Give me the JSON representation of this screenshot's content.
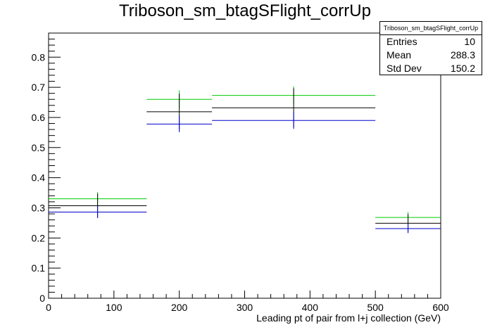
{
  "chart_data": {
    "type": "scatter",
    "title": "Triboson_sm_btagSFlight_corrUp",
    "xlabel": "Leading pt of pair from l+j collection (GeV)",
    "ylabel": "",
    "xlim": [
      0,
      600
    ],
    "ylim": [
      0,
      0.88
    ],
    "x_ticks": [
      0,
      100,
      200,
      300,
      400,
      500,
      600
    ],
    "y_ticks": [
      0,
      0.1,
      0.2,
      0.3,
      0.4,
      0.5,
      0.6,
      0.7,
      0.8
    ],
    "x_tick_labels": [
      "0",
      "100",
      "200",
      "300",
      "400",
      "500",
      "600"
    ],
    "y_tick_labels": [
      "0",
      "0.1",
      "0.2",
      "0.3",
      "0.4",
      "0.5",
      "0.6",
      "0.7",
      "0.8"
    ],
    "grid": false,
    "series": [
      {
        "color": "#00cc00",
        "bins": [
          {
            "x_low": 0,
            "x_high": 150,
            "y": 0.33,
            "err": 0.022
          },
          {
            "x_low": 150,
            "x_high": 250,
            "y": 0.66,
            "err": 0.03
          },
          {
            "x_low": 250,
            "x_high": 500,
            "y": 0.673,
            "err": 0.03
          },
          {
            "x_low": 500,
            "x_high": 600,
            "y": 0.268,
            "err": 0.018
          }
        ]
      },
      {
        "color": "#000000",
        "bins": [
          {
            "x_low": 0,
            "x_high": 150,
            "y": 0.307,
            "err": 0.04
          },
          {
            "x_low": 150,
            "x_high": 250,
            "y": 0.619,
            "err": 0.06
          },
          {
            "x_low": 250,
            "x_high": 500,
            "y": 0.632,
            "err": 0.065
          },
          {
            "x_low": 500,
            "x_high": 600,
            "y": 0.249,
            "err": 0.03
          }
        ]
      },
      {
        "color": "#0000cc",
        "bins": [
          {
            "x_low": 0,
            "x_high": 150,
            "y": 0.286,
            "err": 0.02
          },
          {
            "x_low": 150,
            "x_high": 250,
            "y": 0.578,
            "err": 0.027
          },
          {
            "x_low": 250,
            "x_high": 500,
            "y": 0.59,
            "err": 0.028
          },
          {
            "x_low": 500,
            "x_high": 600,
            "y": 0.231,
            "err": 0.015
          }
        ]
      }
    ]
  },
  "stats_box": {
    "title": "Triboson_sm_btagSFlight_corrUp",
    "entries_label": "Entries",
    "entries_value": "10",
    "mean_label": "Mean",
    "mean_value": "288.3",
    "stddev_label": "Std Dev",
    "stddev_value": "150.2"
  }
}
